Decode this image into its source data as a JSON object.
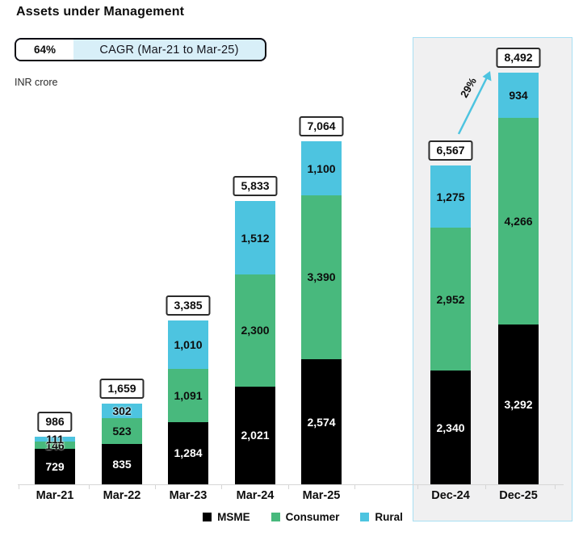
{
  "header": {
    "title": "Assets under Management",
    "badge": {
      "value": "64%",
      "label": "CAGR (Mar-21 to Mar-25)"
    },
    "unit_label": "INR crore"
  },
  "chart_data": {
    "type": "bar",
    "stacked": true,
    "title": "Assets under Management",
    "unit": "INR crore",
    "categories": [
      "Mar-21",
      "Mar-22",
      "Mar-23",
      "Mar-24",
      "Mar-25",
      "Dec-24",
      "Dec-25"
    ],
    "series": [
      {
        "name": "MSME",
        "color": "#000000",
        "label_color": "#ffffff",
        "values": [
          729,
          835,
          1284,
          2021,
          2574,
          2340,
          3292
        ]
      },
      {
        "name": "Consumer",
        "color": "#48b97d",
        "label_color": "#0d0d0d",
        "values": [
          146,
          523,
          1091,
          2300,
          3390,
          2952,
          4266
        ]
      },
      {
        "name": "Rural",
        "color": "#4dc4e0",
        "label_color": "#0d0d0d",
        "values": [
          111,
          302,
          1010,
          1512,
          1100,
          1275,
          934
        ]
      }
    ],
    "totals": [
      986,
      1659,
      3385,
      5833,
      7064,
      6567,
      8492
    ],
    "highlight": {
      "categories": [
        "Dec-24",
        "Dec-25"
      ],
      "growth_label": "29%",
      "box_background": "#f0f0f1",
      "box_border_color": "#a8dff2",
      "arrow_color": "#4dc4e0"
    },
    "legend_position": "bottom",
    "grid": false
  }
}
